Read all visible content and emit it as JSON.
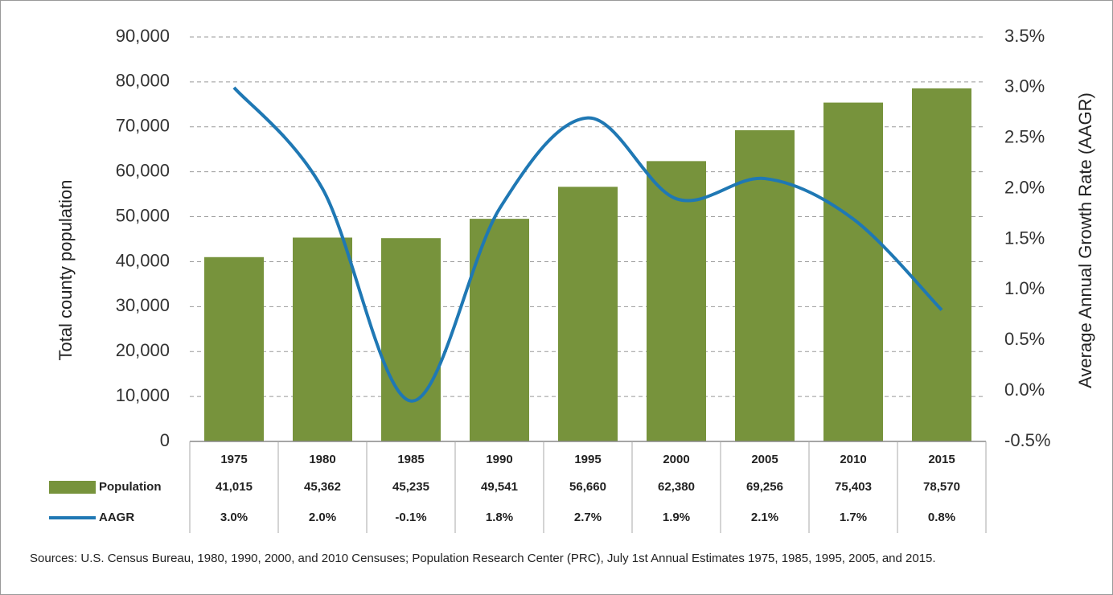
{
  "chart_data": {
    "type": "bar",
    "y_label": "Total county population",
    "y2_label": "Average Annual Growth Rate (AAGR)",
    "categories": [
      "1975",
      "1980",
      "1985",
      "1990",
      "1995",
      "2000",
      "2005",
      "2010",
      "2015"
    ],
    "series": [
      {
        "name": "Population",
        "type": "bar",
        "color": "#77933c",
        "values": [
          41015,
          45362,
          45235,
          49541,
          56660,
          62380,
          69256,
          75403,
          78570
        ],
        "value_labels": [
          "41,015",
          "45,362",
          "45,235",
          "49,541",
          "56,660",
          "62,380",
          "69,256",
          "75,403",
          "78,570"
        ]
      },
      {
        "name": "AAGR",
        "type": "line",
        "axis": "y2",
        "color": "#1f78b4",
        "values": [
          3.0,
          2.0,
          -0.1,
          1.8,
          2.7,
          1.9,
          2.1,
          1.7,
          0.8
        ],
        "value_labels": [
          "3.0%",
          "2.0%",
          "-0.1%",
          "1.8%",
          "2.7%",
          "1.9%",
          "2.1%",
          "1.7%",
          "0.8%"
        ]
      }
    ],
    "ylim": [
      0,
      90000
    ],
    "yticks": [
      0,
      {
        "value": 10000,
        "label": "10,000"
      },
      {
        "value": 20000,
        "label": "20,000"
      },
      {
        "value": 30000,
        "label": "30,000"
      },
      {
        "value": 40000,
        "label": "40,000"
      },
      {
        "value": 50000,
        "label": "50,000"
      },
      {
        "value": 60000,
        "label": "60,000"
      },
      {
        "value": 70000,
        "label": "70,000"
      },
      {
        "value": 80000,
        "label": "80,000"
      },
      {
        "value": 90000,
        "label": "90,000"
      }
    ],
    "y2lim": [
      -0.5,
      3.5
    ],
    "y2ticks": [
      {
        "value": -0.5,
        "label": "-0.5%"
      },
      {
        "value": 0,
        "label": "0.0%"
      },
      {
        "value": 0.5,
        "label": "0.5%"
      },
      {
        "value": 1,
        "label": "1.0%"
      },
      {
        "value": 1.5,
        "label": "1.5%"
      },
      {
        "value": 2,
        "label": "2.0%"
      },
      {
        "value": 2.5,
        "label": "2.5%"
      },
      {
        "value": 3,
        "label": "3.0%"
      },
      {
        "value": 3.5,
        "label": "3.5%"
      }
    ],
    "grid": true,
    "source": "Sources: U.S. Census Bureau, 1980, 1990, 2000, and 2010 Censuses; Population Research Center (PRC), July 1st Annual Estimates 1975, 1985, 1995, 2005, and 2015."
  }
}
